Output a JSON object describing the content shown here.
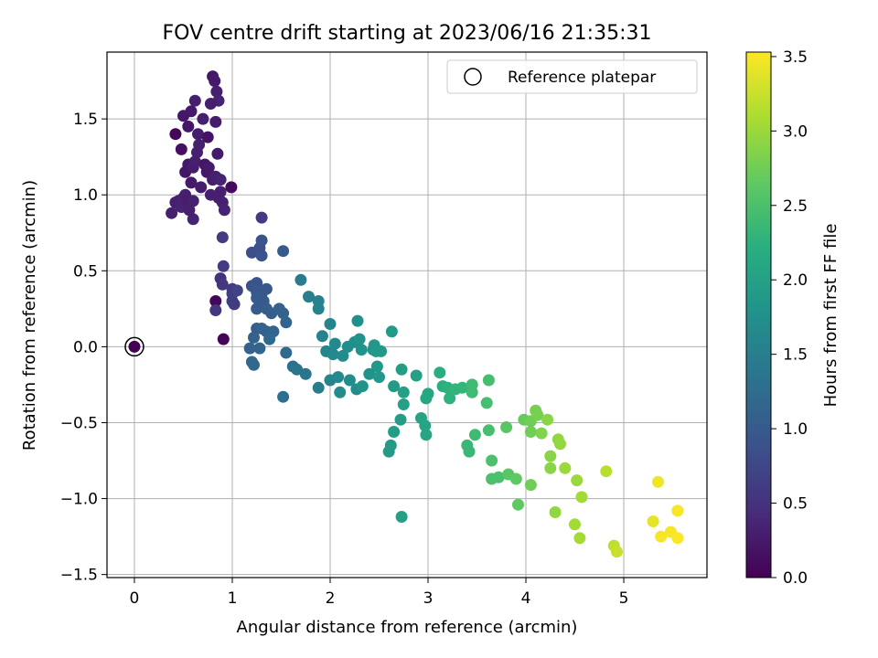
{
  "chart_data": {
    "type": "scatter",
    "title": "FOV centre drift starting at 2023/06/16 21:35:31",
    "xlabel": "Angular distance from reference (arcmin)",
    "ylabel": "Rotation from reference (arcmin)",
    "xlim": [
      -0.28,
      5.85
    ],
    "ylim": [
      -1.52,
      1.94
    ],
    "xticks": [
      "0",
      "1",
      "2",
      "3",
      "4",
      "5"
    ],
    "yticks": [
      "−1.5",
      "−1.0",
      "−0.5",
      "0.0",
      "0.5",
      "1.0",
      "1.5"
    ],
    "grid": true,
    "colormap": "viridis",
    "colorbar": {
      "label": "Hours from first FF file",
      "range": [
        0,
        3.53
      ],
      "ticks": [
        "0.0",
        "0.5",
        "1.0",
        "1.5",
        "2.0",
        "2.5",
        "3.0",
        "3.5"
      ]
    },
    "legend": {
      "position": "top-right",
      "entries": [
        "Reference platepar"
      ]
    },
    "reference_point": {
      "x": 0,
      "y": 0
    },
    "points": [
      [
        0.42,
        1.4,
        0.05
      ],
      [
        0.48,
        1.3,
        0.15
      ],
      [
        0.55,
        1.45,
        0.2
      ],
      [
        0.58,
        1.55,
        0.25
      ],
      [
        0.62,
        1.62,
        0.3
      ],
      [
        0.5,
        1.52,
        0.22
      ],
      [
        0.65,
        1.4,
        0.28
      ],
      [
        0.7,
        1.5,
        0.3
      ],
      [
        0.75,
        1.38,
        0.18
      ],
      [
        0.8,
        1.78,
        0.22
      ],
      [
        0.82,
        1.75,
        0.25
      ],
      [
        0.84,
        1.68,
        0.3
      ],
      [
        0.86,
        1.62,
        0.35
      ],
      [
        0.78,
        1.6,
        0.3
      ],
      [
        0.83,
        1.48,
        0.28
      ],
      [
        0.85,
        1.27,
        0.25
      ],
      [
        0.52,
        1.15,
        0.2
      ],
      [
        0.55,
        1.2,
        0.22
      ],
      [
        0.58,
        1.08,
        0.25
      ],
      [
        0.6,
        1.18,
        0.28
      ],
      [
        0.62,
        1.22,
        0.3
      ],
      [
        0.64,
        1.28,
        0.32
      ],
      [
        0.66,
        1.33,
        0.3
      ],
      [
        0.68,
        1.05,
        0.28
      ],
      [
        0.72,
        1.2,
        0.2
      ],
      [
        0.74,
        1.15,
        0.22
      ],
      [
        0.76,
        1.18,
        0.25
      ],
      [
        0.78,
        1.0,
        0.3
      ],
      [
        0.8,
        1.1,
        0.28
      ],
      [
        0.83,
        1.12,
        0.3
      ],
      [
        0.88,
        1.1,
        0.35
      ],
      [
        0.88,
        1.02,
        0.3
      ],
      [
        0.9,
        0.95,
        0.32
      ],
      [
        0.86,
        0.98,
        0.3
      ],
      [
        0.92,
        0.9,
        0.35
      ],
      [
        0.99,
        1.05,
        0.1
      ],
      [
        0.42,
        0.95,
        0.3
      ],
      [
        0.45,
        0.96,
        0.32
      ],
      [
        0.48,
        0.92,
        0.35
      ],
      [
        0.5,
        0.98,
        0.33
      ],
      [
        0.52,
        1.0,
        0.3
      ],
      [
        0.55,
        0.95,
        0.28
      ],
      [
        0.6,
        0.96,
        0.32
      ],
      [
        0.6,
        0.84,
        0.35
      ],
      [
        0.38,
        0.88,
        0.3
      ],
      [
        0.56,
        0.9,
        0.3
      ],
      [
        1.3,
        0.85,
        0.6
      ],
      [
        0.9,
        0.72,
        0.6
      ],
      [
        0.91,
        0.53,
        0.6
      ],
      [
        0.88,
        0.45,
        0.5
      ],
      [
        0.9,
        0.41,
        0.55
      ],
      [
        0.83,
        0.3,
        0.05
      ],
      [
        0.83,
        0.24,
        0.55
      ],
      [
        0.91,
        0.05,
        0.05
      ],
      [
        1.0,
        0.38,
        0.6
      ],
      [
        1.0,
        0.35,
        0.62
      ],
      [
        1.0,
        0.3,
        0.65
      ],
      [
        1.02,
        0.28,
        0.62
      ],
      [
        1.05,
        0.37,
        0.7
      ],
      [
        1.2,
        0.62,
        0.85
      ],
      [
        1.28,
        0.65,
        0.85
      ],
      [
        1.3,
        0.7,
        0.9
      ],
      [
        1.3,
        0.6,
        0.9
      ],
      [
        1.2,
        0.4,
        0.9
      ],
      [
        1.25,
        0.42,
        0.92
      ],
      [
        1.25,
        0.36,
        0.95
      ],
      [
        1.3,
        0.35,
        0.95
      ],
      [
        1.32,
        0.3,
        0.98
      ],
      [
        1.35,
        0.38,
        0.95
      ],
      [
        1.25,
        0.32,
        1.0
      ],
      [
        1.25,
        0.25,
        1.0
      ],
      [
        1.35,
        0.25,
        1.05
      ],
      [
        1.4,
        0.22,
        1.05
      ],
      [
        1.48,
        0.25,
        1.1
      ],
      [
        1.52,
        0.22,
        1.1
      ],
      [
        1.52,
        0.63,
        1.0
      ],
      [
        1.25,
        0.12,
        1.05
      ],
      [
        1.3,
        0.12,
        1.1
      ],
      [
        1.35,
        0.1,
        1.1
      ],
      [
        1.42,
        0.1,
        1.15
      ],
      [
        1.55,
        0.16,
        1.15
      ],
      [
        1.22,
        0.06,
        1.1
      ],
      [
        1.18,
        -0.01,
        1.12
      ],
      [
        1.28,
        -0.01,
        1.15
      ],
      [
        1.2,
        -0.1,
        1.2
      ],
      [
        1.22,
        -0.12,
        1.2
      ],
      [
        1.38,
        0.05,
        1.2
      ],
      [
        1.55,
        -0.04,
        1.2
      ],
      [
        1.52,
        -0.33,
        1.3
      ],
      [
        1.62,
        -0.13,
        1.3
      ],
      [
        1.66,
        -0.15,
        1.35
      ],
      [
        1.75,
        -0.18,
        1.35
      ],
      [
        1.7,
        0.44,
        1.45
      ],
      [
        1.78,
        0.33,
        1.5
      ],
      [
        1.88,
        0.3,
        1.55
      ],
      [
        1.88,
        0.25,
        1.55
      ],
      [
        1.88,
        -0.27,
        1.5
      ],
      [
        1.92,
        0.07,
        1.55
      ],
      [
        1.96,
        -0.03,
        1.6
      ],
      [
        2.0,
        0.15,
        1.6
      ],
      [
        2.0,
        -0.22,
        1.6
      ],
      [
        2.03,
        -0.05,
        1.65
      ],
      [
        2.05,
        0.02,
        1.65
      ],
      [
        2.08,
        -0.2,
        1.65
      ],
      [
        2.1,
        -0.3,
        1.7
      ],
      [
        2.13,
        -0.06,
        1.7
      ],
      [
        2.18,
        0.0,
        1.7
      ],
      [
        2.2,
        -0.22,
        1.72
      ],
      [
        2.25,
        0.03,
        1.75
      ],
      [
        2.27,
        -0.28,
        1.72
      ],
      [
        2.28,
        0.17,
        1.75
      ],
      [
        2.3,
        0.05,
        1.78
      ],
      [
        2.32,
        -0.02,
        1.78
      ],
      [
        2.33,
        -0.26,
        1.8
      ],
      [
        2.4,
        -0.18,
        1.8
      ],
      [
        2.44,
        -0.02,
        1.82
      ],
      [
        2.45,
        0.01,
        1.85
      ],
      [
        2.47,
        -0.03,
        1.85
      ],
      [
        2.48,
        -0.13,
        1.85
      ],
      [
        2.5,
        -0.2,
        1.85
      ],
      [
        2.52,
        -0.03,
        1.88
      ],
      [
        2.6,
        -0.69,
        1.9
      ],
      [
        2.62,
        -0.65,
        1.92
      ],
      [
        2.63,
        0.1,
        1.9
      ],
      [
        2.65,
        -0.26,
        1.92
      ],
      [
        2.65,
        -0.56,
        1.95
      ],
      [
        2.72,
        -0.48,
        1.95
      ],
      [
        2.73,
        -0.15,
        1.95
      ],
      [
        2.73,
        -1.12,
        2.0
      ],
      [
        2.75,
        -0.38,
        2.0
      ],
      [
        2.75,
        -0.3,
        2.0
      ],
      [
        2.88,
        -0.19,
        2.0
      ],
      [
        2.93,
        -0.47,
        2.05
      ],
      [
        2.97,
        -0.52,
        2.05
      ],
      [
        2.98,
        -0.58,
        2.08
      ],
      [
        2.98,
        -0.34,
        2.1
      ],
      [
        3.0,
        -0.31,
        2.1
      ],
      [
        3.12,
        -0.17,
        2.2
      ],
      [
        3.15,
        -0.26,
        2.2
      ],
      [
        3.2,
        -0.27,
        2.25
      ],
      [
        3.22,
        -0.34,
        2.25
      ],
      [
        3.28,
        -0.28,
        2.3
      ],
      [
        3.35,
        -0.27,
        2.3
      ],
      [
        3.4,
        -0.65,
        2.35
      ],
      [
        3.42,
        -0.69,
        2.35
      ],
      [
        3.45,
        -0.25,
        2.4
      ],
      [
        3.45,
        -0.3,
        2.4
      ],
      [
        3.48,
        -0.58,
        2.4
      ],
      [
        3.6,
        -0.37,
        2.45
      ],
      [
        3.62,
        -0.22,
        2.45
      ],
      [
        3.62,
        -0.55,
        2.45
      ],
      [
        3.65,
        -0.75,
        2.5
      ],
      [
        3.65,
        -0.87,
        2.5
      ],
      [
        3.72,
        -0.86,
        2.5
      ],
      [
        3.8,
        -0.53,
        2.6
      ],
      [
        3.82,
        -0.84,
        2.6
      ],
      [
        3.9,
        -0.87,
        2.65
      ],
      [
        3.92,
        -1.04,
        2.65
      ],
      [
        3.98,
        -0.48,
        2.7
      ],
      [
        4.05,
        -0.49,
        2.75
      ],
      [
        4.05,
        -0.91,
        2.75
      ],
      [
        4.05,
        -0.56,
        2.75
      ],
      [
        4.1,
        -0.42,
        2.8
      ],
      [
        4.12,
        -0.45,
        2.8
      ],
      [
        4.16,
        -0.57,
        2.85
      ],
      [
        4.22,
        -0.48,
        2.9
      ],
      [
        4.25,
        -0.72,
        2.9
      ],
      [
        4.25,
        -0.8,
        2.9
      ],
      [
        4.3,
        -1.09,
        2.95
      ],
      [
        4.33,
        -0.61,
        2.95
      ],
      [
        4.35,
        -0.64,
        2.95
      ],
      [
        4.4,
        -0.8,
        3.0
      ],
      [
        4.52,
        -0.88,
        3.0
      ],
      [
        4.5,
        -1.17,
        3.05
      ],
      [
        4.55,
        -1.26,
        3.05
      ],
      [
        4.57,
        -0.99,
        3.05
      ],
      [
        4.82,
        -0.82,
        3.15
      ],
      [
        4.9,
        -1.31,
        3.2
      ],
      [
        4.93,
        -1.35,
        3.25
      ],
      [
        5.3,
        -1.15,
        3.4
      ],
      [
        5.35,
        -0.89,
        3.45
      ],
      [
        5.38,
        -1.25,
        3.5
      ],
      [
        5.48,
        -1.22,
        3.5
      ],
      [
        5.55,
        -1.08,
        3.5
      ],
      [
        5.55,
        -1.26,
        3.52
      ]
    ]
  }
}
